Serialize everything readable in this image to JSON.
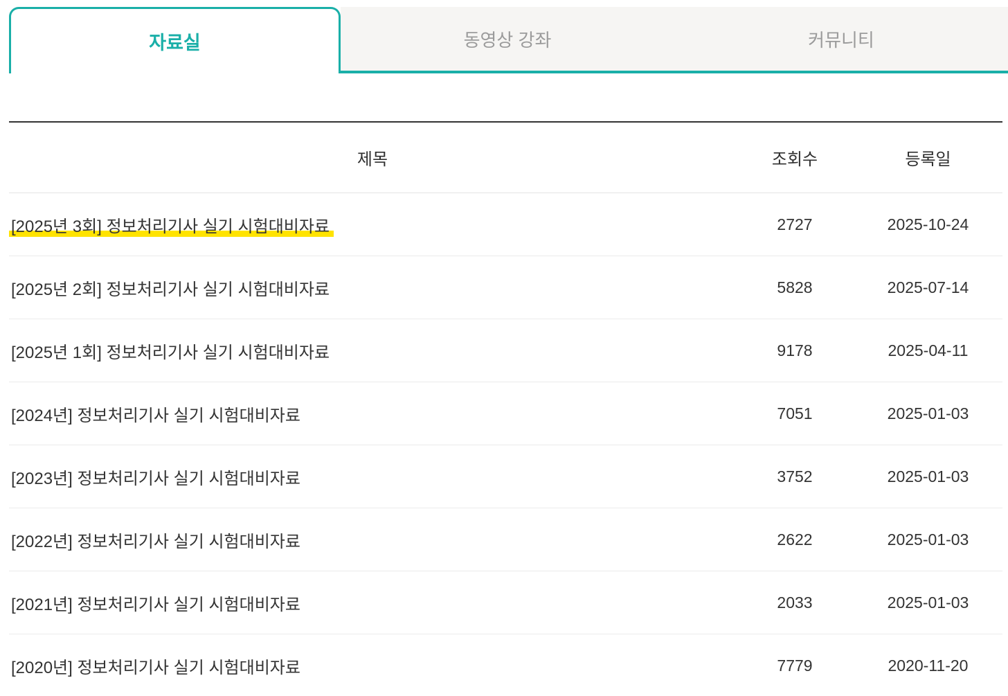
{
  "tabs": [
    {
      "label": "자료실",
      "active": true
    },
    {
      "label": "동영상 강좌",
      "active": false
    },
    {
      "label": "커뮤니티",
      "active": false
    }
  ],
  "board": {
    "headers": {
      "title": "제목",
      "views": "조회수",
      "date": "등록일"
    },
    "rows": [
      {
        "title": "[2025년 3회] 정보처리기사 실기 시험대비자료",
        "views": "2727",
        "date": "2025-10-24",
        "highlighted": true
      },
      {
        "title": "[2025년 2회] 정보처리기사 실기 시험대비자료",
        "views": "5828",
        "date": "2025-07-14",
        "highlighted": false
      },
      {
        "title": "[2025년 1회] 정보처리기사 실기 시험대비자료",
        "views": "9178",
        "date": "2025-04-11",
        "highlighted": false
      },
      {
        "title": "[2024년] 정보처리기사 실기 시험대비자료",
        "views": "7051",
        "date": "2025-01-03",
        "highlighted": false
      },
      {
        "title": "[2023년] 정보처리기사 실기 시험대비자료",
        "views": "3752",
        "date": "2025-01-03",
        "highlighted": false
      },
      {
        "title": "[2022년] 정보처리기사 실기 시험대비자료",
        "views": "2622",
        "date": "2025-01-03",
        "highlighted": false
      },
      {
        "title": "[2021년] 정보처리기사 실기 시험대비자료",
        "views": "2033",
        "date": "2025-01-03",
        "highlighted": false
      },
      {
        "title": "[2020년] 정보처리기사 실기 시험대비자료",
        "views": "7779",
        "date": "2020-11-20",
        "highlighted": false
      }
    ]
  },
  "colors": {
    "accent": "#1aafa8",
    "highlight": "#ffe300",
    "inactive_tab_bg": "#f6f5f3",
    "inactive_tab_text": "#9b9b9b",
    "text": "#333333"
  }
}
